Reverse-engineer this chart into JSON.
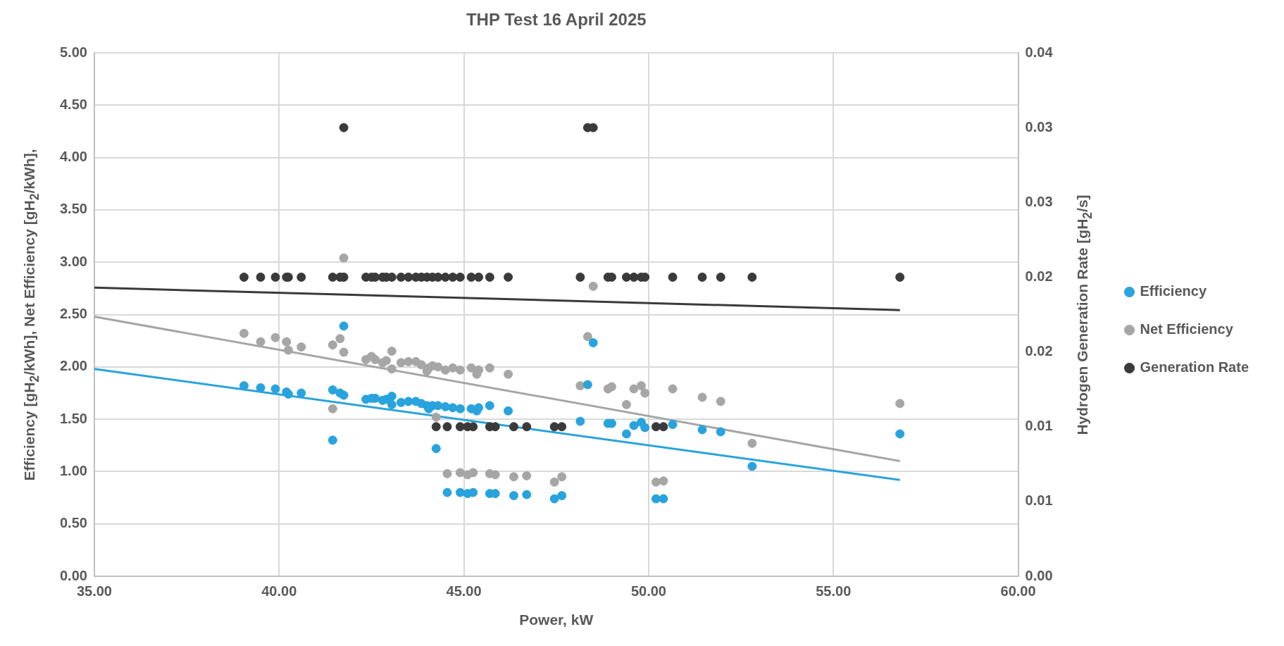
{
  "chart_data": {
    "type": "scatter",
    "title": "THP Test 16 April 2025",
    "xlabel": "Power, kW",
    "ylabel": "Efficiency [gH$_{2}$/kWh], Net Efficiency [gH$_{2}$/kWh],",
    "y2label": "Hydrogen Generation Rate [gH$_{2}$/s]",
    "xlim": [
      35,
      60
    ],
    "xticks": [
      {
        "value": 35,
        "label": "35.00"
      },
      {
        "value": 40,
        "label": "40.00"
      },
      {
        "value": 45,
        "label": "45.00"
      },
      {
        "value": 50,
        "label": "50.00"
      },
      {
        "value": 55,
        "label": "55.00"
      },
      {
        "value": 60,
        "label": "60.00"
      }
    ],
    "ylim": [
      0,
      5
    ],
    "yticks": [
      {
        "value": 0,
        "label": "0.00"
      },
      {
        "value": 0.5,
        "label": "0.50"
      },
      {
        "value": 1,
        "label": "1.00"
      },
      {
        "value": 1.5,
        "label": "1.50"
      },
      {
        "value": 2,
        "label": "2.00"
      },
      {
        "value": 2.5,
        "label": "2.50"
      },
      {
        "value": 3,
        "label": "3.00"
      },
      {
        "value": 3.5,
        "label": "3.50"
      },
      {
        "value": 4,
        "label": "4.00"
      },
      {
        "value": 4.5,
        "label": "4.50"
      },
      {
        "value": 5,
        "label": "5.00"
      }
    ],
    "y2lim": [
      0,
      0.035
    ],
    "y2ticks": [
      {
        "value": 0,
        "label": "0.00"
      },
      {
        "value": 0.005,
        "label": "0.01"
      },
      {
        "value": 0.01,
        "label": "0.01"
      },
      {
        "value": 0.015,
        "label": "0.02"
      },
      {
        "value": 0.02,
        "label": "0.02"
      },
      {
        "value": 0.025,
        "label": "0.03"
      },
      {
        "value": 0.03,
        "label": "0.03"
      },
      {
        "value": 0.035,
        "label": "0.04"
      }
    ],
    "grid": true,
    "legend": "right",
    "series": [
      {
        "name": "Efficiency",
        "marker": "circle",
        "color": "#29a3dd",
        "x": [
          39.05,
          39.5,
          39.9,
          40.2,
          40.25,
          40.6,
          41.45,
          41.45,
          41.65,
          41.75,
          41.75,
          42.35,
          42.5,
          42.6,
          42.8,
          42.9,
          43.05,
          43.05,
          43.3,
          43.5,
          43.7,
          43.85,
          44.0,
          44.05,
          44.15,
          44.3,
          44.25,
          44.5,
          44.55,
          44.7,
          44.9,
          44.9,
          45.1,
          45.2,
          45.25,
          45.35,
          45.4,
          45.7,
          45.7,
          45.85,
          46.2,
          46.35,
          46.7,
          47.45,
          47.65,
          48.15,
          48.35,
          48.5,
          48.9,
          49.0,
          49.4,
          49.6,
          49.8,
          49.9,
          50.2,
          50.4,
          50.65,
          51.45,
          51.95,
          52.8,
          56.8
        ],
        "values": [
          1.82,
          1.8,
          1.79,
          1.76,
          1.74,
          1.75,
          1.78,
          1.3,
          1.75,
          1.73,
          2.39,
          1.69,
          1.7,
          1.7,
          1.68,
          1.69,
          1.72,
          1.64,
          1.66,
          1.67,
          1.67,
          1.65,
          1.63,
          1.6,
          1.63,
          1.63,
          1.22,
          1.62,
          0.8,
          1.61,
          1.6,
          0.8,
          0.79,
          1.6,
          0.8,
          1.58,
          1.61,
          1.63,
          0.79,
          0.79,
          1.58,
          0.77,
          0.78,
          0.74,
          0.77,
          1.48,
          1.83,
          2.23,
          1.46,
          1.46,
          1.36,
          1.44,
          1.47,
          1.42,
          0.74,
          0.74,
          1.45,
          1.4,
          1.38,
          1.05,
          1.36
        ]
      },
      {
        "name": "Net Efficiency",
        "marker": "circle",
        "color": "#a6a6a6",
        "x": [
          39.05,
          39.5,
          39.9,
          40.2,
          40.25,
          40.6,
          41.45,
          41.45,
          41.65,
          41.75,
          41.75,
          42.35,
          42.5,
          42.6,
          42.8,
          42.9,
          43.05,
          43.05,
          43.3,
          43.5,
          43.7,
          43.85,
          44.0,
          44.05,
          44.15,
          44.3,
          44.25,
          44.5,
          44.55,
          44.7,
          44.9,
          44.9,
          45.1,
          45.2,
          45.25,
          45.35,
          45.4,
          45.7,
          45.7,
          45.85,
          46.2,
          46.35,
          46.7,
          47.45,
          47.65,
          48.15,
          48.35,
          48.5,
          48.9,
          49.0,
          49.4,
          49.6,
          49.8,
          49.9,
          50.2,
          50.4,
          50.65,
          51.45,
          51.95,
          52.8,
          56.8
        ],
        "values": [
          2.32,
          2.24,
          2.28,
          2.24,
          2.16,
          2.19,
          2.21,
          1.6,
          2.27,
          3.04,
          2.14,
          2.07,
          2.1,
          2.07,
          2.04,
          2.06,
          2.15,
          1.98,
          2.04,
          2.05,
          2.05,
          2.02,
          1.96,
          1.99,
          2.01,
          2.0,
          1.52,
          1.97,
          0.98,
          1.99,
          1.97,
          0.99,
          0.97,
          1.99,
          0.99,
          1.93,
          1.97,
          1.99,
          0.98,
          0.97,
          1.93,
          0.95,
          0.96,
          0.9,
          0.95,
          1.82,
          2.29,
          2.77,
          1.79,
          1.81,
          1.64,
          1.79,
          1.82,
          1.75,
          0.9,
          0.91,
          1.79,
          1.71,
          1.67,
          1.27,
          1.65
        ]
      },
      {
        "name": "Generation Rate",
        "marker": "circle",
        "axis": "y2",
        "color": "#3a3a3a",
        "x": [
          39.05,
          39.5,
          39.9,
          40.2,
          40.25,
          40.6,
          41.45,
          41.65,
          41.75,
          42.35,
          42.5,
          42.6,
          42.8,
          42.9,
          43.05,
          43.3,
          43.5,
          43.7,
          43.85,
          44.0,
          44.15,
          44.3,
          44.5,
          44.7,
          44.9,
          45.2,
          45.4,
          45.7,
          46.2,
          48.15,
          48.9,
          49.0,
          49.4,
          49.6,
          49.8,
          49.9,
          50.65,
          51.45,
          51.95,
          52.8,
          56.8,
          41.75,
          48.35,
          48.5,
          44.25,
          44.55,
          44.9,
          45.1,
          45.25,
          45.7,
          45.85,
          46.35,
          46.7,
          47.45,
          47.65,
          50.2,
          50.4
        ],
        "values": [
          0.02,
          0.02,
          0.02,
          0.02,
          0.02,
          0.02,
          0.02,
          0.02,
          0.02,
          0.02,
          0.02,
          0.02,
          0.02,
          0.02,
          0.02,
          0.02,
          0.02,
          0.02,
          0.02,
          0.02,
          0.02,
          0.02,
          0.02,
          0.02,
          0.02,
          0.02,
          0.02,
          0.02,
          0.02,
          0.02,
          0.02,
          0.02,
          0.02,
          0.02,
          0.02,
          0.02,
          0.02,
          0.02,
          0.02,
          0.02,
          0.02,
          0.03,
          0.03,
          0.03,
          0.01,
          0.01,
          0.01,
          0.01,
          0.01,
          0.01,
          0.01,
          0.01,
          0.01,
          0.01,
          0.01,
          0.01,
          0.01
        ]
      },
      {
        "type": "line",
        "marker": "none",
        "color": "#29a3dd",
        "x": [
          35,
          56.8
        ],
        "values": [
          1.98,
          0.92
        ]
      },
      {
        "type": "line",
        "marker": "none",
        "color": "#a6a6a6",
        "x": [
          35,
          56.8
        ],
        "values": [
          2.48,
          1.1
        ]
      },
      {
        "type": "line",
        "marker": "none",
        "axis": "y2",
        "color": "#3a3a3a",
        "x": [
          35,
          56.8
        ],
        "values": [
          0.0193,
          0.0178
        ]
      }
    ]
  }
}
